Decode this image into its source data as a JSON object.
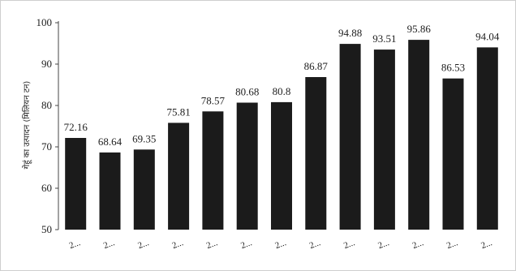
{
  "chart_data": {
    "type": "bar",
    "title": "",
    "xlabel": "",
    "ylabel": "गेहूं का उत्पादन (मिलियन टन)",
    "ylim": [
      50,
      100
    ],
    "yticks": [
      50,
      60,
      70,
      80,
      90,
      100
    ],
    "grid": false,
    "legend": "none",
    "bar_color": "#1b1b1b",
    "categories": [
      "2...",
      "2...",
      "2...",
      "2...",
      "2...",
      "2...",
      "2...",
      "2...",
      "2...",
      "2...",
      "2...",
      "2...",
      "2..."
    ],
    "values": [
      72.16,
      68.64,
      69.35,
      75.81,
      78.57,
      80.68,
      80.8,
      86.87,
      94.88,
      93.51,
      95.86,
      86.53,
      94.04
    ],
    "data_labels": [
      "72.16",
      "68.64",
      "69.35",
      "75.81",
      "78.57",
      "80.68",
      "80.8",
      "86.87",
      "94.88",
      "93.51",
      "95.86",
      "86.53",
      "94.04"
    ]
  }
}
